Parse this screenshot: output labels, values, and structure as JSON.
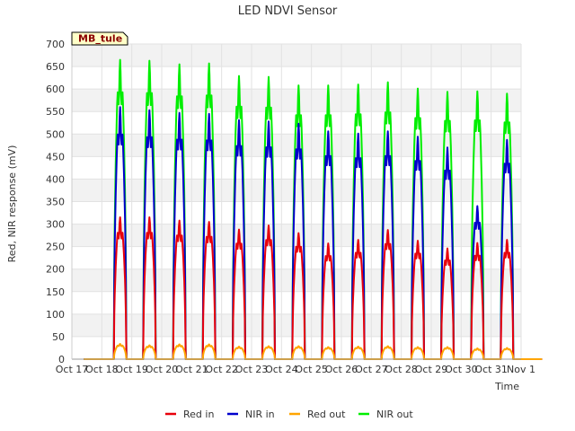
{
  "chart_data": {
    "type": "line",
    "title": "LED NDVI Sensor",
    "xlabel": "Time",
    "ylabel": "Red, NIR response (mV)",
    "badge": "MB_tule",
    "ylim": [
      0,
      700
    ],
    "yticks": [
      0,
      50,
      100,
      150,
      200,
      250,
      300,
      350,
      400,
      450,
      500,
      550,
      600,
      650,
      700
    ],
    "xlim": [
      "2023-10-17",
      "2023-11-01"
    ],
    "xticks": [
      "Oct 17",
      "Oct 18",
      "Oct 19",
      "Oct 20",
      "Oct 21",
      "Oct 22",
      "Oct 23",
      "Oct 24",
      "Oct 25",
      "Oct 26",
      "Oct 27",
      "Oct 28",
      "Oct 29",
      "Oct 30",
      "Oct 31",
      "Nov 1"
    ],
    "grid": true,
    "legend_position": "bottom",
    "days": [
      "Oct 18",
      "Oct 19",
      "Oct 20",
      "Oct 21",
      "Oct 22",
      "Oct 23",
      "Oct 24",
      "Oct 25",
      "Oct 26",
      "Oct 27",
      "Oct 28",
      "Oct 29",
      "Oct 30",
      "Oct 31"
    ],
    "series": [
      {
        "name": "Red in",
        "color": "#e8000b",
        "daily_peaks": [
          315,
          315,
          308,
          305,
          288,
          297,
          280,
          257,
          265,
          287,
          263,
          246,
          258,
          265
        ]
      },
      {
        "name": "NIR in",
        "color": "#0000cc",
        "daily_peaks": [
          560,
          553,
          547,
          545,
          531,
          528,
          523,
          506,
          501,
          506,
          494,
          470,
          340,
          487
        ]
      },
      {
        "name": "Red out",
        "color": "#ffa500",
        "daily_peaks": [
          34,
          31,
          33,
          33,
          28,
          29,
          29,
          27,
          28,
          29,
          27,
          27,
          24,
          25
        ]
      },
      {
        "name": "NIR out",
        "color": "#00ee00",
        "daily_peaks": [
          665,
          663,
          655,
          657,
          629,
          627,
          608,
          608,
          610,
          615,
          601,
          594,
          595,
          590
        ]
      }
    ]
  }
}
